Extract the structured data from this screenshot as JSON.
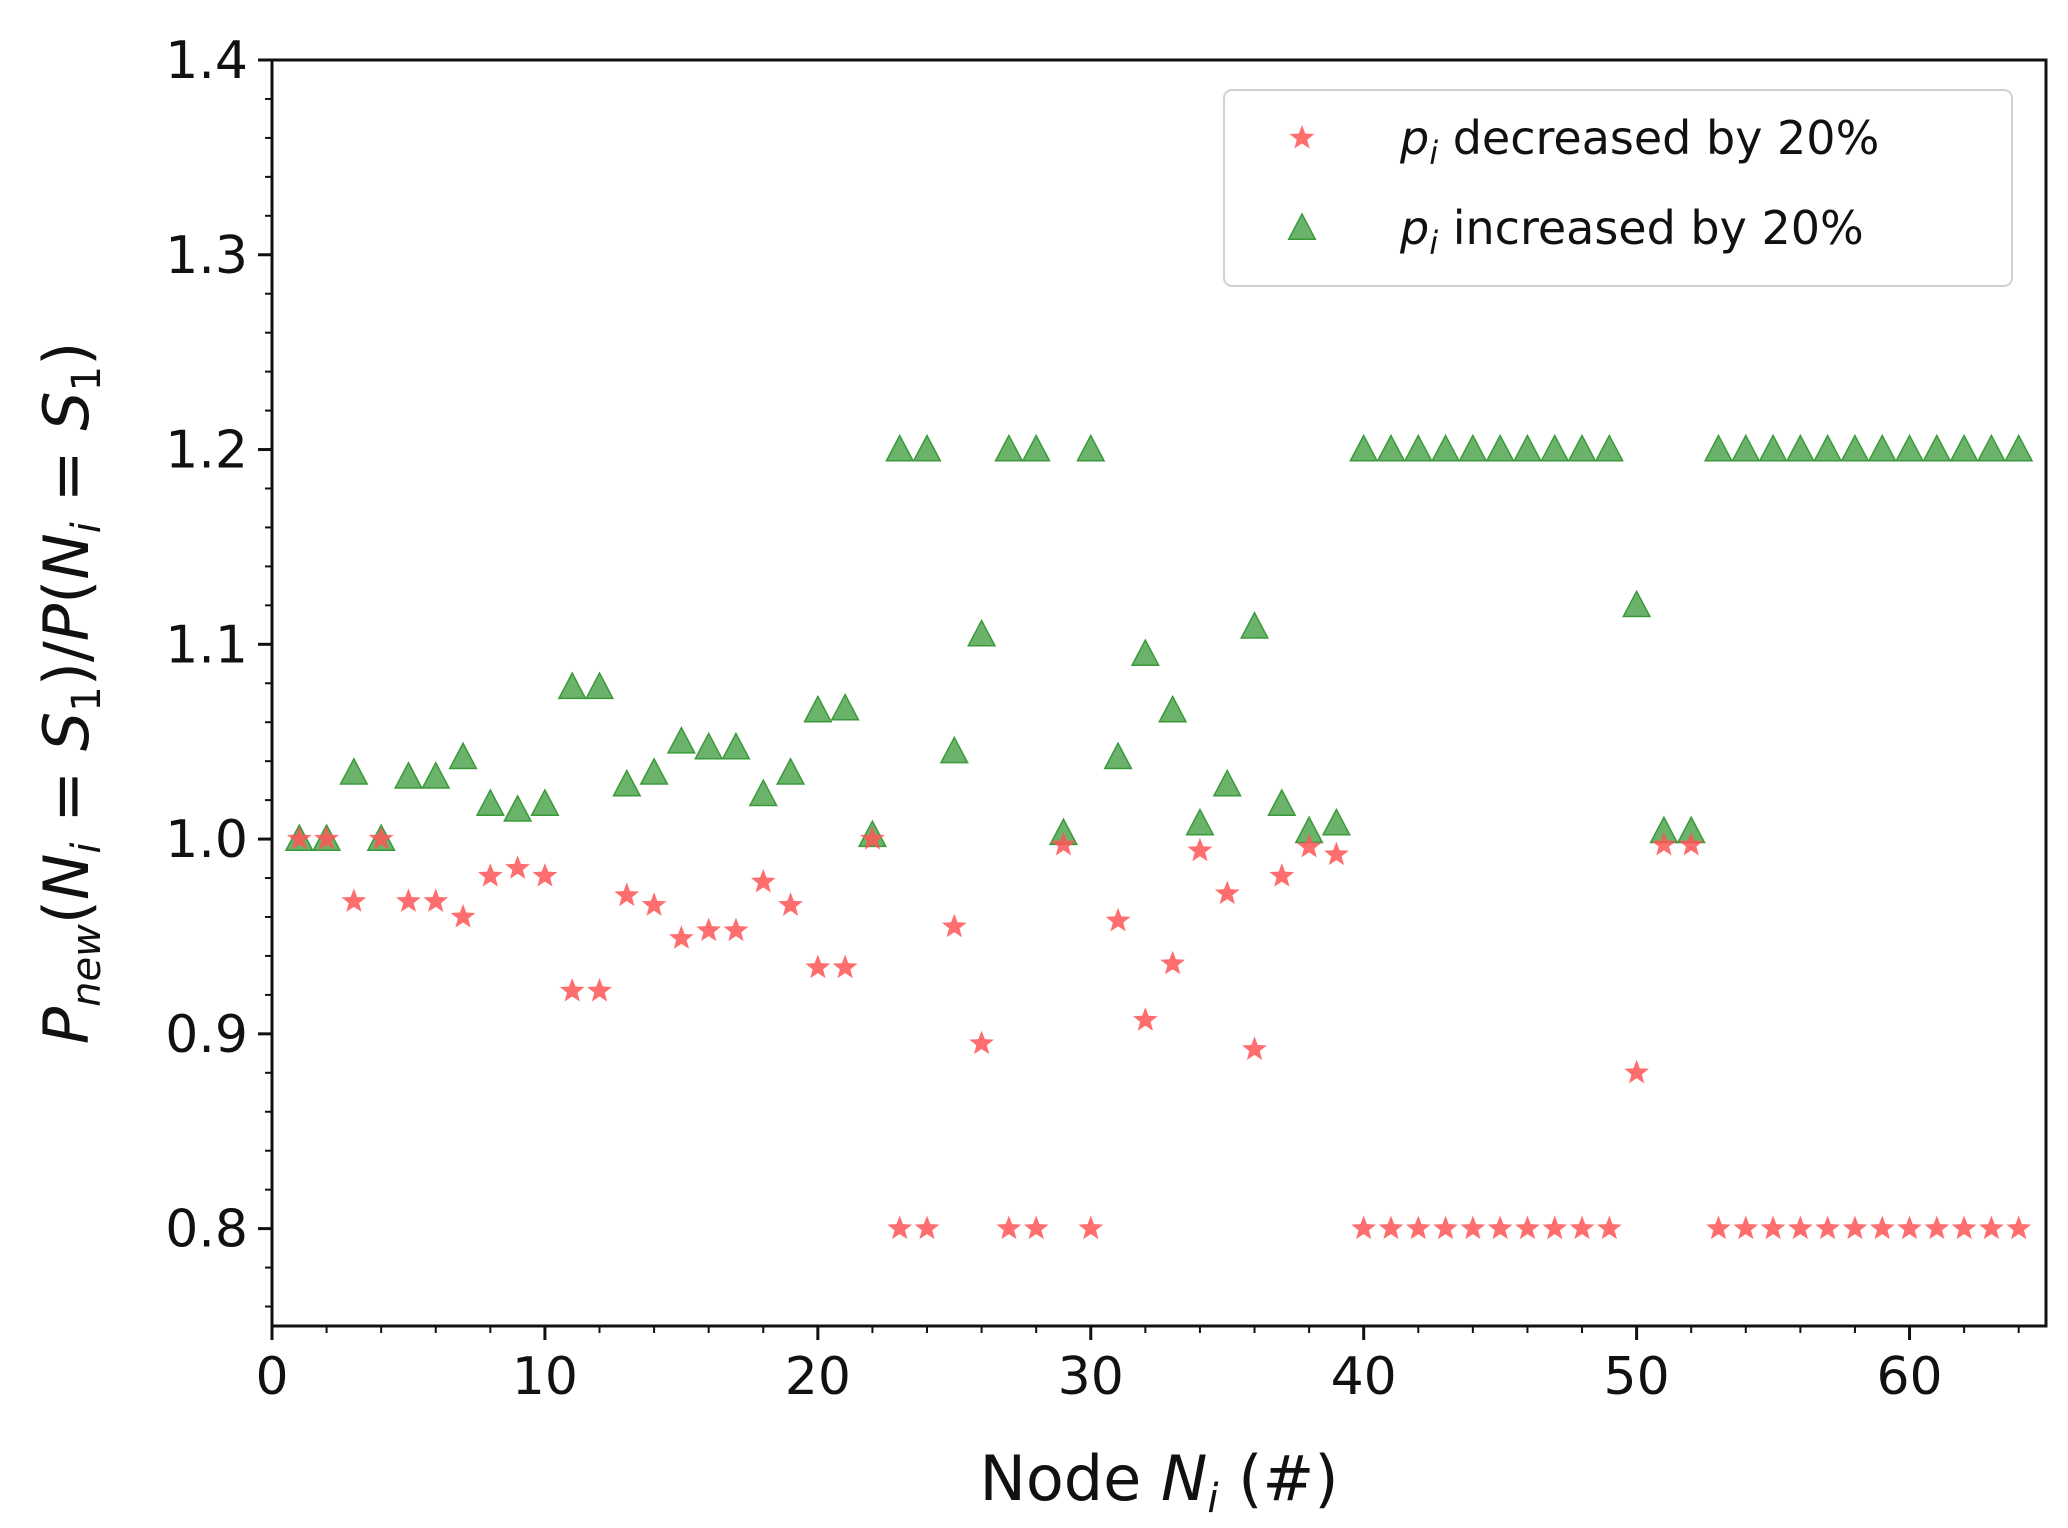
{
  "chart_data": {
    "type": "scatter",
    "title": "",
    "xlabel": "Node N_i (#)",
    "ylabel": "P_new(N_i = S_1)/P(N_i = S_1)",
    "xlim": [
      0,
      65
    ],
    "ylim": [
      0.75,
      1.4
    ],
    "x_ticks": [
      0,
      10,
      20,
      30,
      40,
      50,
      60
    ],
    "x_tick_labels": [
      "0",
      "10",
      "20",
      "30",
      "40",
      "50",
      "60"
    ],
    "y_ticks": [
      0.8,
      0.9,
      1.0,
      1.1,
      1.2,
      1.3,
      1.4
    ],
    "y_tick_labels": [
      "0.8",
      "0.9",
      "1.0",
      "1.1",
      "1.2",
      "1.3",
      "1.4"
    ],
    "grid": false,
    "legend_position": "top-right",
    "series": [
      {
        "name": "p_i decreased by 20%",
        "legend_label": "decreased by 20%",
        "marker": "star",
        "color": "#ff5555",
        "x": [
          1,
          2,
          3,
          4,
          5,
          6,
          7,
          8,
          9,
          10,
          11,
          12,
          13,
          14,
          15,
          16,
          17,
          18,
          19,
          20,
          21,
          22,
          23,
          24,
          25,
          26,
          27,
          28,
          29,
          30,
          31,
          32,
          33,
          34,
          35,
          36,
          37,
          38,
          39,
          40,
          41,
          42,
          43,
          44,
          45,
          46,
          47,
          48,
          49,
          50,
          51,
          52,
          53,
          54,
          55,
          56,
          57,
          58,
          59,
          60,
          61,
          62,
          63,
          64
        ],
        "y": [
          1.0,
          1.0,
          0.968,
          1.0,
          0.968,
          0.968,
          0.96,
          0.981,
          0.985,
          0.981,
          0.922,
          0.922,
          0.971,
          0.966,
          0.949,
          0.953,
          0.953,
          0.978,
          0.966,
          0.934,
          0.934,
          1.0,
          0.8,
          0.8,
          0.955,
          0.895,
          0.8,
          0.8,
          0.997,
          0.8,
          0.958,
          0.907,
          0.936,
          0.994,
          0.972,
          0.892,
          0.981,
          0.996,
          0.992,
          0.8,
          0.8,
          0.8,
          0.8,
          0.8,
          0.8,
          0.8,
          0.8,
          0.8,
          0.8,
          0.88,
          0.997,
          0.997,
          0.8,
          0.8,
          0.8,
          0.8,
          0.8,
          0.8,
          0.8,
          0.8,
          0.8,
          0.8,
          0.8,
          0.8
        ]
      },
      {
        "name": "p_i increased by 20%",
        "legend_label": "increased by 20%",
        "marker": "triangle",
        "color": "#3a9a3a",
        "x": [
          1,
          2,
          3,
          4,
          5,
          6,
          7,
          8,
          9,
          10,
          11,
          12,
          13,
          14,
          15,
          16,
          17,
          18,
          19,
          20,
          21,
          22,
          23,
          24,
          25,
          26,
          27,
          28,
          29,
          30,
          31,
          32,
          33,
          34,
          35,
          36,
          37,
          38,
          39,
          40,
          41,
          42,
          43,
          44,
          45,
          46,
          47,
          48,
          49,
          50,
          51,
          52,
          53,
          54,
          55,
          56,
          57,
          58,
          59,
          60,
          61,
          62,
          63,
          64
        ],
        "y": [
          1.0,
          1.0,
          1.034,
          1.0,
          1.032,
          1.032,
          1.042,
          1.018,
          1.015,
          1.018,
          1.078,
          1.078,
          1.028,
          1.034,
          1.05,
          1.047,
          1.047,
          1.023,
          1.034,
          1.066,
          1.067,
          1.002,
          1.2,
          1.2,
          1.045,
          1.105,
          1.2,
          1.2,
          1.003,
          1.2,
          1.042,
          1.095,
          1.066,
          1.008,
          1.028,
          1.109,
          1.018,
          1.004,
          1.008,
          1.2,
          1.2,
          1.2,
          1.2,
          1.2,
          1.2,
          1.2,
          1.2,
          1.2,
          1.2,
          1.12,
          1.004,
          1.004,
          1.2,
          1.2,
          1.2,
          1.2,
          1.2,
          1.2,
          1.2,
          1.2,
          1.2,
          1.2,
          1.2,
          1.2
        ]
      }
    ],
    "legend_symbol": "p"
  }
}
